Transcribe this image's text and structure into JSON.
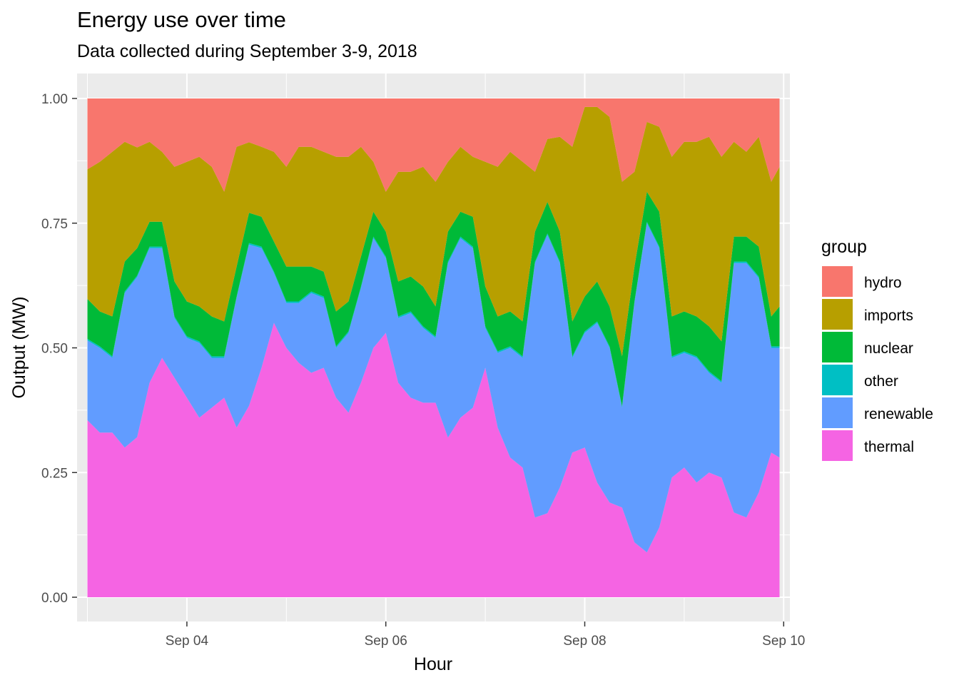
{
  "chart_data": {
    "type": "area",
    "stacked": "fill",
    "title": "Energy use over time",
    "subtitle": "Data collected during September 3-9, 2018",
    "xlabel": "Hour",
    "ylabel": "Output (MW)",
    "ylim": [
      0,
      1
    ],
    "xlim": [
      "2018-09-02T21:30",
      "2018-09-10T01:30"
    ],
    "y_ticks": [
      "0.00",
      "0.25",
      "0.50",
      "0.75",
      "1.00"
    ],
    "x_ticks": [
      {
        "date": "2018-09-04T00:00",
        "label": "Sep 04"
      },
      {
        "date": "2018-09-06T00:00",
        "label": "Sep 06"
      },
      {
        "date": "2018-09-08T00:00",
        "label": "Sep 08"
      },
      {
        "date": "2018-09-10T00:00",
        "label": "Sep 10"
      }
    ],
    "grid": true,
    "legend": {
      "title": "group",
      "position": "right"
    },
    "x": [
      "2018-09-03T00:00",
      "2018-09-03T03:00",
      "2018-09-03T06:00",
      "2018-09-03T09:00",
      "2018-09-03T12:00",
      "2018-09-03T15:00",
      "2018-09-03T18:00",
      "2018-09-03T21:00",
      "2018-09-04T00:00",
      "2018-09-04T03:00",
      "2018-09-04T06:00",
      "2018-09-04T09:00",
      "2018-09-04T12:00",
      "2018-09-04T15:00",
      "2018-09-04T18:00",
      "2018-09-04T21:00",
      "2018-09-05T00:00",
      "2018-09-05T03:00",
      "2018-09-05T06:00",
      "2018-09-05T09:00",
      "2018-09-05T12:00",
      "2018-09-05T15:00",
      "2018-09-05T18:00",
      "2018-09-05T21:00",
      "2018-09-06T00:00",
      "2018-09-06T03:00",
      "2018-09-06T06:00",
      "2018-09-06T09:00",
      "2018-09-06T12:00",
      "2018-09-06T15:00",
      "2018-09-06T18:00",
      "2018-09-06T21:00",
      "2018-09-07T00:00",
      "2018-09-07T03:00",
      "2018-09-07T06:00",
      "2018-09-07T09:00",
      "2018-09-07T12:00",
      "2018-09-07T15:00",
      "2018-09-07T18:00",
      "2018-09-07T21:00",
      "2018-09-08T00:00",
      "2018-09-08T03:00",
      "2018-09-08T06:00",
      "2018-09-08T09:00",
      "2018-09-08T12:00",
      "2018-09-08T15:00",
      "2018-09-08T18:00",
      "2018-09-08T21:00",
      "2018-09-09T00:00",
      "2018-09-09T03:00",
      "2018-09-09T06:00",
      "2018-09-09T09:00",
      "2018-09-09T12:00",
      "2018-09-09T15:00",
      "2018-09-09T18:00",
      "2018-09-09T21:00",
      "2018-09-09T23:00"
    ],
    "series": [
      {
        "name": "thermal",
        "color": "#F564E3",
        "values": [
          0.355,
          0.33,
          0.33,
          0.3,
          0.35,
          0.43,
          0.48,
          0.44,
          0.4,
          0.36,
          0.38,
          0.4,
          0.34,
          0.38,
          0.46,
          0.55,
          0.5,
          0.47,
          0.45,
          0.46,
          0.4,
          0.37,
          0.43,
          0.5,
          0.53,
          0.43,
          0.4,
          0.39,
          0.39,
          0.32,
          0.36,
          0.38,
          0.46,
          0.34,
          0.28,
          0.26,
          0.16,
          0.16,
          0.22,
          0.29,
          0.3,
          0.23,
          0.19,
          0.18,
          0.11,
          0.09,
          0.14,
          0.24,
          0.26,
          0.23,
          0.25,
          0.24,
          0.17,
          0.16,
          0.21,
          0.29,
          0.28
        ]
      },
      {
        "name": "renewable",
        "color": "#619CFF",
        "values": [
          0.16,
          0.17,
          0.15,
          0.31,
          0.35,
          0.27,
          0.22,
          0.12,
          0.12,
          0.15,
          0.1,
          0.08,
          0.26,
          0.32,
          0.24,
          0.1,
          0.09,
          0.12,
          0.16,
          0.14,
          0.1,
          0.16,
          0.19,
          0.22,
          0.15,
          0.13,
          0.17,
          0.15,
          0.13,
          0.35,
          0.36,
          0.32,
          0.08,
          0.15,
          0.22,
          0.22,
          0.51,
          0.53,
          0.45,
          0.19,
          0.23,
          0.32,
          0.31,
          0.2,
          0.48,
          0.66,
          0.56,
          0.24,
          0.23,
          0.25,
          0.2,
          0.19,
          0.5,
          0.51,
          0.43,
          0.21,
          0.22
        ]
      },
      {
        "name": "other",
        "color": "#00BFC4",
        "values": [
          0.003,
          0.003,
          0.003,
          0.003,
          0.003,
          0.003,
          0.003,
          0.003,
          0.003,
          0.003,
          0.003,
          0.003,
          0.003,
          0.003,
          0.003,
          0.003,
          0.003,
          0.003,
          0.003,
          0.003,
          0.003,
          0.003,
          0.003,
          0.003,
          0.003,
          0.003,
          0.003,
          0.003,
          0.003,
          0.003,
          0.003,
          0.003,
          0.003,
          0.003,
          0.003,
          0.003,
          0.003,
          0.003,
          0.003,
          0.003,
          0.003,
          0.003,
          0.003,
          0.003,
          0.003,
          0.003,
          0.003,
          0.003,
          0.003,
          0.003,
          0.003,
          0.003,
          0.003,
          0.003,
          0.003,
          0.003,
          0.003
        ]
      },
      {
        "name": "nuclear",
        "color": "#00BA38",
        "values": [
          0.08,
          0.07,
          0.08,
          0.06,
          0.06,
          0.05,
          0.05,
          0.07,
          0.07,
          0.07,
          0.08,
          0.07,
          0.06,
          0.06,
          0.06,
          0.06,
          0.07,
          0.07,
          0.05,
          0.05,
          0.07,
          0.06,
          0.06,
          0.05,
          0.05,
          0.07,
          0.07,
          0.08,
          0.06,
          0.06,
          0.05,
          0.06,
          0.08,
          0.07,
          0.07,
          0.07,
          0.06,
          0.06,
          0.06,
          0.07,
          0.07,
          0.08,
          0.08,
          0.1,
          0.07,
          0.06,
          0.07,
          0.08,
          0.08,
          0.08,
          0.09,
          0.08,
          0.05,
          0.05,
          0.06,
          0.06,
          0.08
        ]
      },
      {
        "name": "imports",
        "color": "#B79F00",
        "values": [
          0.26,
          0.3,
          0.33,
          0.24,
          0.22,
          0.16,
          0.14,
          0.23,
          0.28,
          0.3,
          0.3,
          0.26,
          0.24,
          0.14,
          0.14,
          0.18,
          0.2,
          0.24,
          0.24,
          0.24,
          0.31,
          0.29,
          0.22,
          0.1,
          0.08,
          0.22,
          0.21,
          0.24,
          0.25,
          0.14,
          0.13,
          0.12,
          0.25,
          0.3,
          0.32,
          0.32,
          0.12,
          0.12,
          0.19,
          0.35,
          0.38,
          0.35,
          0.38,
          0.35,
          0.19,
          0.14,
          0.17,
          0.32,
          0.34,
          0.35,
          0.38,
          0.37,
          0.19,
          0.17,
          0.22,
          0.27,
          0.28
        ]
      },
      {
        "name": "hydro",
        "color": "#F8766D",
        "values": [
          0.142,
          0.127,
          0.107,
          0.087,
          0.107,
          0.087,
          0.107,
          0.137,
          0.127,
          0.117,
          0.137,
          0.187,
          0.097,
          0.087,
          0.097,
          0.107,
          0.137,
          0.097,
          0.097,
          0.107,
          0.117,
          0.117,
          0.097,
          0.127,
          0.187,
          0.147,
          0.147,
          0.137,
          0.167,
          0.127,
          0.097,
          0.117,
          0.127,
          0.137,
          0.107,
          0.127,
          0.147,
          0.077,
          0.077,
          0.097,
          0.017,
          0.017,
          0.037,
          0.167,
          0.147,
          0.047,
          0.057,
          0.117,
          0.087,
          0.087,
          0.077,
          0.117,
          0.087,
          0.107,
          0.077,
          0.167,
          0.137
        ]
      }
    ]
  }
}
